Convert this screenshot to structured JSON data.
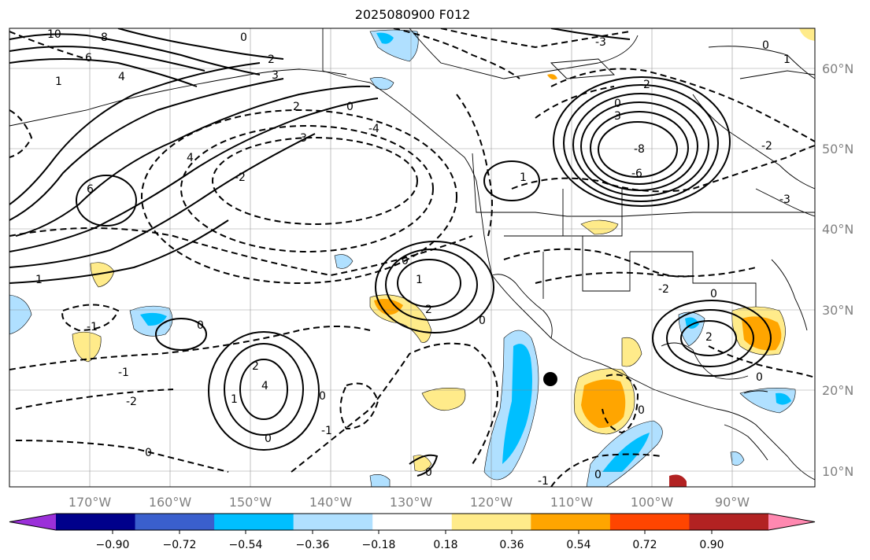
{
  "title": "2025080900 F012",
  "map": {
    "lon_labels": [
      "170°W",
      "160°W",
      "150°W",
      "140°W",
      "130°W",
      "120°W",
      "110°W",
      "100°W",
      "90°W"
    ],
    "lat_labels": [
      "60°N",
      "50°N",
      "40°N",
      "30°N",
      "20°N",
      "10°N"
    ],
    "grid": true,
    "marker": {
      "lon": -112.5,
      "lat": 21.5,
      "color": "#000000"
    },
    "contour_labels": [
      "10",
      "8",
      "6",
      "4",
      "3",
      "2",
      "1",
      "0",
      "-1",
      "-2",
      "-3",
      "-4",
      "-6",
      "-8"
    ]
  },
  "colorbar": {
    "tick_labels": [
      "−0.90",
      "−0.72",
      "−0.54",
      "−0.36",
      "−0.18",
      "0.18",
      "0.36",
      "0.54",
      "0.72",
      "0.90"
    ],
    "colors": [
      "#9b30d9",
      "#00008b",
      "#3a5fcd",
      "#00bfff",
      "#b0e0ff",
      "#ffffff",
      "#ffeb8a",
      "#ffa500",
      "#ff4500",
      "#b22222",
      "#ff88b0"
    ]
  }
}
